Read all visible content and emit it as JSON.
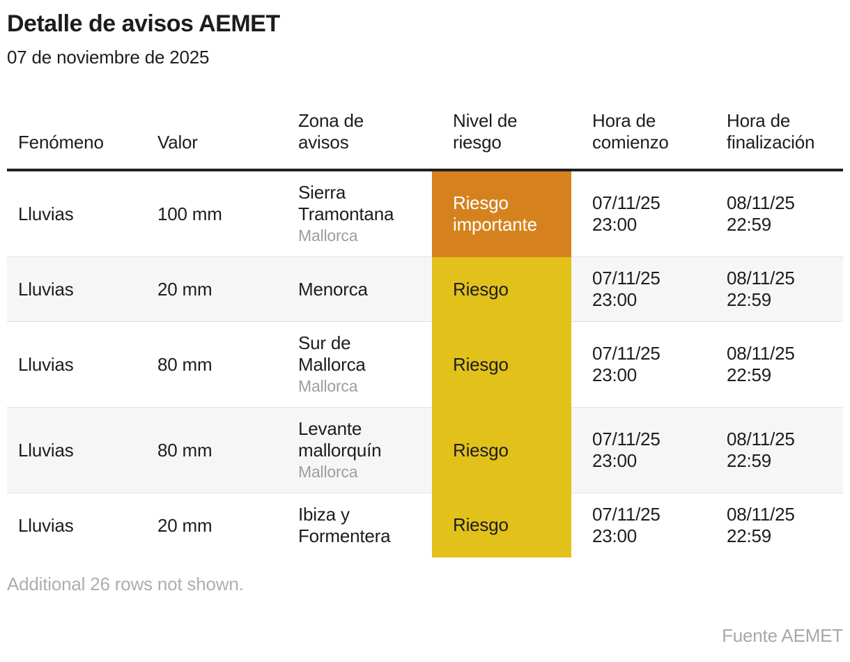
{
  "header": {
    "title": "Detalle de avisos AEMET",
    "subtitle": "07 de noviembre de 2025"
  },
  "table": {
    "columns": {
      "fenomeno": "Fenómeno",
      "valor": "Valor",
      "zona": "Zona de avisos",
      "nivel": "Nivel de riesgo",
      "comienzo": "Hora de comienzo",
      "finalizacion": "Hora de finalización"
    },
    "rows": [
      {
        "fenomeno": "Lluvias",
        "valor": "100 mm",
        "zona": "Sierra Tramontana",
        "zona_sub": "Mallorca",
        "nivel": "Riesgo importante",
        "nivel_key": "importante",
        "comienzo": "07/11/25 23:00",
        "fin": "08/11/25 22:59"
      },
      {
        "fenomeno": "Lluvias",
        "valor": "20 mm",
        "zona": "Menorca",
        "zona_sub": "",
        "nivel": "Riesgo",
        "nivel_key": "riesgo",
        "comienzo": "07/11/25 23:00",
        "fin": "08/11/25 22:59"
      },
      {
        "fenomeno": "Lluvias",
        "valor": "80 mm",
        "zona": "Sur de Mallorca",
        "zona_sub": "Mallorca",
        "nivel": "Riesgo",
        "nivel_key": "riesgo",
        "comienzo": "07/11/25 23:00",
        "fin": "08/11/25 22:59"
      },
      {
        "fenomeno": "Lluvias",
        "valor": "80 mm",
        "zona": "Levante mallorquín",
        "zona_sub": "Mallorca",
        "nivel": "Riesgo",
        "nivel_key": "riesgo",
        "comienzo": "07/11/25 23:00",
        "fin": "08/11/25 22:59"
      },
      {
        "fenomeno": "Lluvias",
        "valor": "20 mm",
        "zona": "Ibiza y Formentera",
        "zona_sub": "",
        "nivel": "Riesgo",
        "nivel_key": "riesgo",
        "comienzo": "07/11/25 23:00",
        "fin": "08/11/25 22:59"
      }
    ]
  },
  "footer": {
    "note": "Additional 26 rows not shown.",
    "source": "Fuente AEMET"
  },
  "colors": {
    "levels": {
      "importante": {
        "bg": "#d5821e",
        "text": "#ffffff"
      },
      "riesgo": {
        "bg": "#e2c11a",
        "text": "#1d1d1d"
      }
    },
    "header_border": "#1f1f1f",
    "row_separator": "#e2e2e2",
    "alt_row_bg": "#f6f6f6",
    "secondary_text": "#9d9d9d",
    "note_text": "#aeaeae"
  },
  "chart_data": {
    "type": "table",
    "title": "Detalle de avisos AEMET",
    "subtitle": "07 de noviembre de 2025",
    "columns": [
      "Fenómeno",
      "Valor",
      "Zona de avisos",
      "Nivel de riesgo",
      "Hora de comienzo",
      "Hora de finalización"
    ],
    "rows": [
      [
        "Lluvias",
        "100 mm",
        "Sierra Tramontana (Mallorca)",
        "Riesgo importante",
        "07/11/25 23:00",
        "08/11/25 22:59"
      ],
      [
        "Lluvias",
        "20 mm",
        "Menorca",
        "Riesgo",
        "07/11/25 23:00",
        "08/11/25 22:59"
      ],
      [
        "Lluvias",
        "80 mm",
        "Sur de Mallorca (Mallorca)",
        "Riesgo",
        "07/11/25 23:00",
        "08/11/25 22:59"
      ],
      [
        "Lluvias",
        "80 mm",
        "Levante mallorquín (Mallorca)",
        "Riesgo",
        "07/11/25 23:00",
        "08/11/25 22:59"
      ],
      [
        "Lluvias",
        "20 mm",
        "Ibiza y Formentera",
        "Riesgo",
        "07/11/25 23:00",
        "08/11/25 22:59"
      ]
    ],
    "risk_color_map": {
      "Riesgo importante": "#d5821e",
      "Riesgo": "#e2c11a"
    },
    "note": "Additional 26 rows not shown.",
    "source": "Fuente AEMET"
  }
}
